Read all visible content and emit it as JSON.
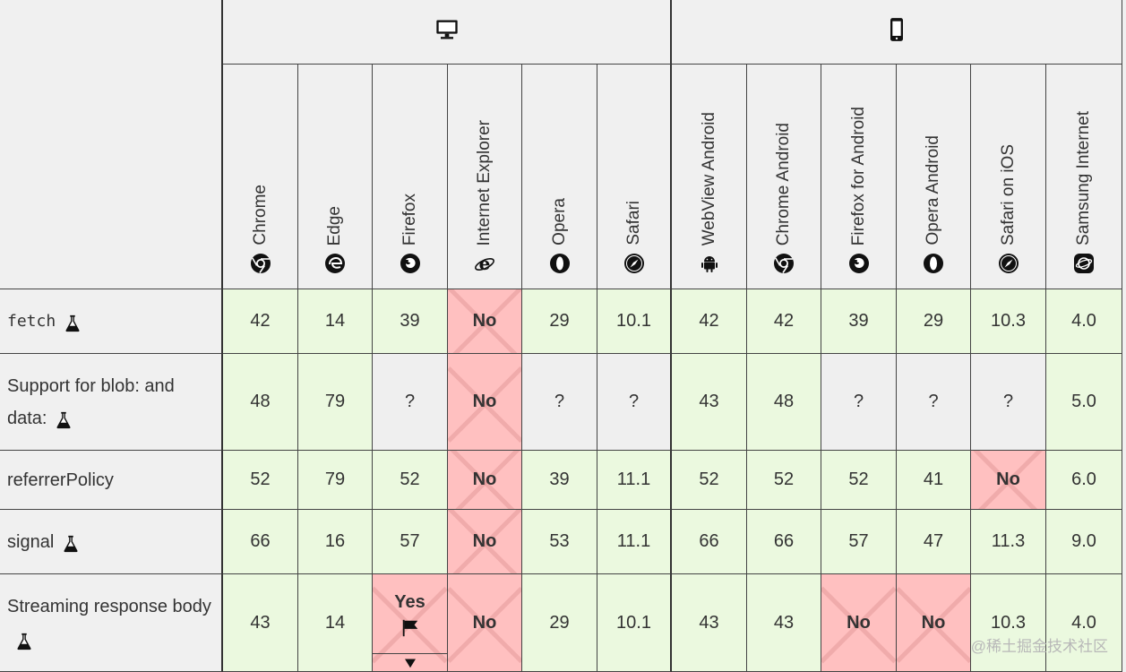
{
  "platforms": [
    {
      "key": "desktop",
      "icon": "desktop-icon"
    },
    {
      "key": "mobile",
      "icon": "mobile-phone-icon"
    }
  ],
  "browsers": [
    {
      "label": "Chrome",
      "icon": "chrome-icon"
    },
    {
      "label": "Edge",
      "icon": "edge-icon"
    },
    {
      "label": "Firefox",
      "icon": "firefox-icon"
    },
    {
      "label": "Internet Explorer",
      "icon": "internet-explorer-icon"
    },
    {
      "label": "Opera",
      "icon": "opera-icon"
    },
    {
      "label": "Safari",
      "icon": "safari-icon"
    },
    {
      "label": "WebView Android",
      "icon": "android-icon"
    },
    {
      "label": "Chrome Android",
      "icon": "chrome-icon"
    },
    {
      "label": "Firefox for Android",
      "icon": "firefox-icon"
    },
    {
      "label": "Opera Android",
      "icon": "opera-icon"
    },
    {
      "label": "Safari on iOS",
      "icon": "safari-icon"
    },
    {
      "label": "Samsung Internet",
      "icon": "samsung-internet-icon"
    }
  ],
  "features": [
    {
      "name": "fetch",
      "code": true,
      "experimental": true,
      "support": [
        "42",
        "14",
        "39",
        "No",
        "29",
        "10.1",
        "42",
        "42",
        "39",
        "29",
        "10.3",
        "4.0"
      ]
    },
    {
      "name": "Support for blob: and data:",
      "code": false,
      "experimental": true,
      "support": [
        "48",
        "79",
        "?",
        "No",
        "?",
        "?",
        "43",
        "48",
        "?",
        "?",
        "?",
        "5.0"
      ]
    },
    {
      "name": "referrerPolicy",
      "code": false,
      "experimental": false,
      "support": [
        "52",
        "79",
        "52",
        "No",
        "39",
        "11.1",
        "52",
        "52",
        "52",
        "41",
        "No",
        "6.0"
      ]
    },
    {
      "name": "signal",
      "code": false,
      "experimental": true,
      "support": [
        "66",
        "16",
        "57",
        "No",
        "53",
        "11.1",
        "66",
        "66",
        "57",
        "47",
        "11.3",
        "9.0"
      ]
    },
    {
      "name": "Streaming response body",
      "code": false,
      "experimental": true,
      "support": [
        "43",
        "14",
        "Yes",
        "No",
        "29",
        "10.1",
        "43",
        "43",
        "No",
        "No",
        "10.3",
        "4.0"
      ],
      "flagged": [
        2
      ]
    }
  ],
  "watermark": "@稀土掘金技术社区",
  "colors": {
    "supported": "#ebf9df",
    "unsupported": "#ffc0c0",
    "unknown": "#efefef",
    "header": "#f0f0f0"
  }
}
